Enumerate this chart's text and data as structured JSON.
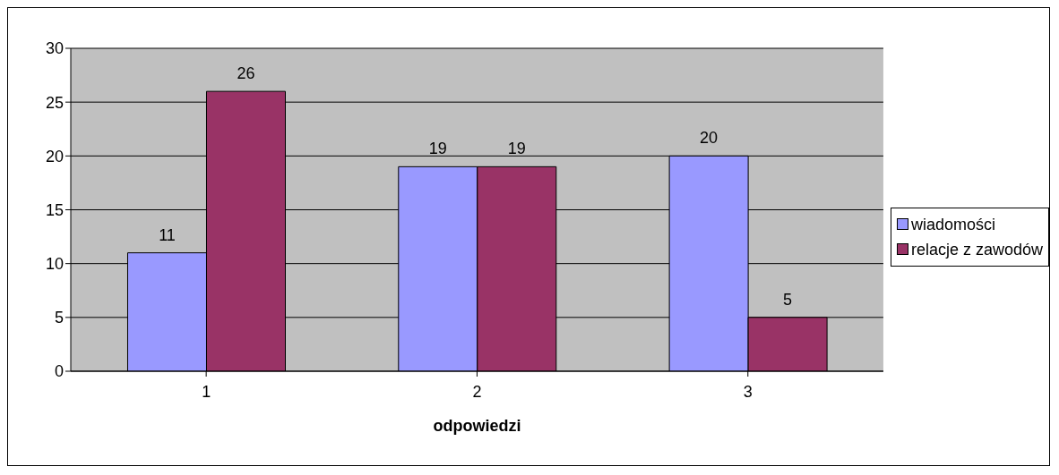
{
  "chart_data": {
    "type": "bar",
    "xlabel": "odpowiedzi",
    "categories": [
      "1",
      "2",
      "3"
    ],
    "series": [
      {
        "name": "wiadomości",
        "color": "#9999ff",
        "values": [
          11,
          19,
          20
        ]
      },
      {
        "name": "relacje z zawodów",
        "color": "#993366",
        "values": [
          26,
          19,
          5
        ]
      }
    ],
    "ylim": [
      0,
      30
    ],
    "yticks": [
      0,
      5,
      10,
      15,
      20,
      25,
      30
    ],
    "grid": "y",
    "legend": "right",
    "data_labels": true
  }
}
